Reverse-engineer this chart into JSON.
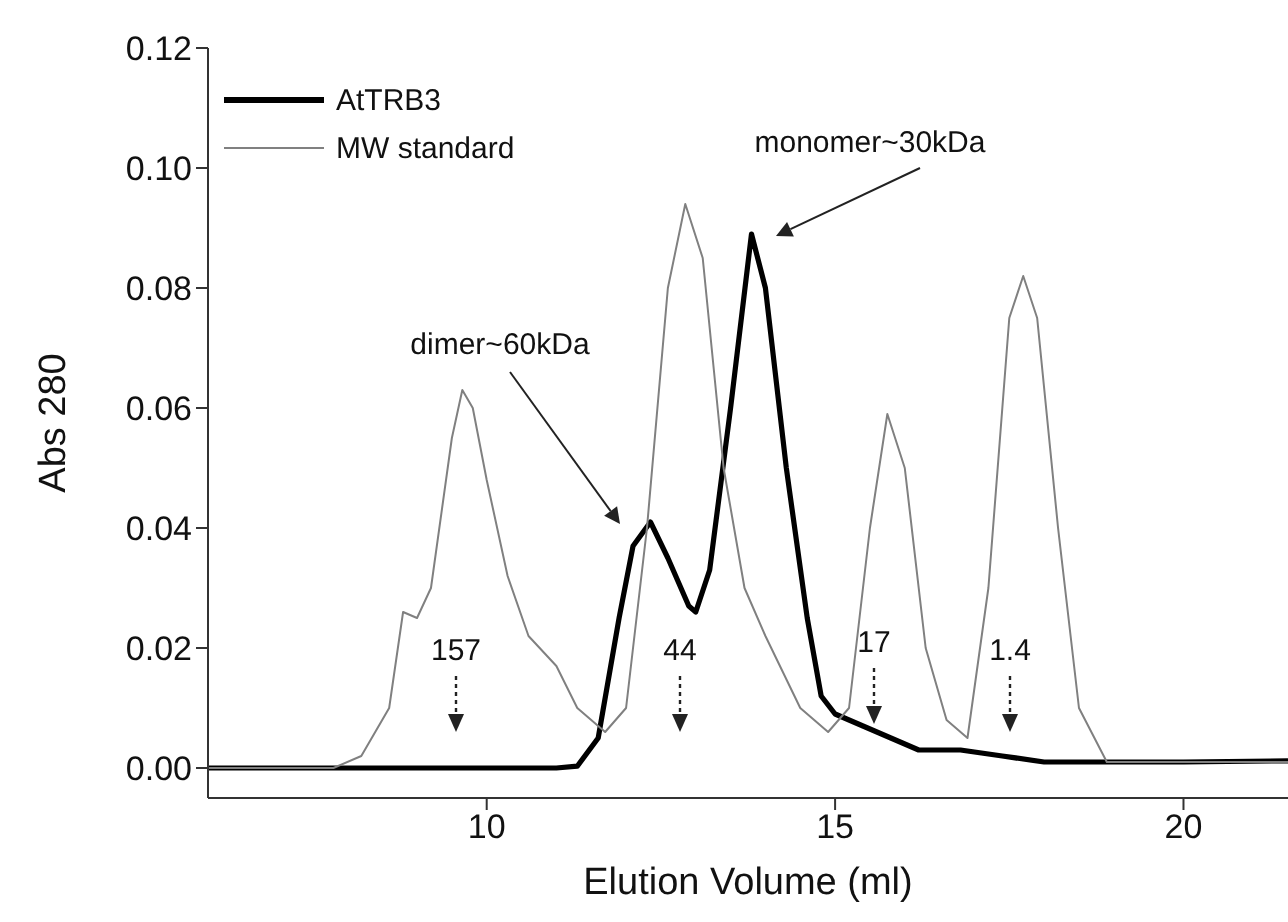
{
  "chart_data": {
    "type": "line",
    "xlabel": "Elution Volume (ml)",
    "ylabel": "Abs 280",
    "xlim": [
      6,
      21.5
    ],
    "xticks": [
      10,
      15,
      20
    ],
    "ylim": [
      -0.005,
      0.12
    ],
    "yticks": [
      {
        "value": 0,
        "label": "0.00"
      },
      0.02,
      0.04,
      0.06,
      0.08,
      {
        "value": 0.1,
        "label": "0.10"
      },
      0.12
    ],
    "legend": "top left",
    "grid": false,
    "marker": "none",
    "line_style": "solid",
    "series": [
      {
        "name": "AtTRB3",
        "color": "#000000",
        "x": [
          6,
          8,
          10,
          11,
          11.3,
          11.6,
          11.9,
          12.1,
          12.35,
          12.6,
          12.9,
          13.0,
          13.2,
          13.5,
          13.8,
          14.0,
          14.3,
          14.6,
          14.8,
          15.0,
          15.4,
          15.8,
          16.2,
          16.8,
          17.4,
          18,
          20,
          21.5
        ],
        "values": [
          0,
          0,
          0,
          0,
          0.0003,
          0.005,
          0.025,
          0.037,
          0.041,
          0.035,
          0.027,
          0.026,
          0.033,
          0.06,
          0.089,
          0.08,
          0.05,
          0.025,
          0.012,
          0.009,
          0.007,
          0.005,
          0.003,
          0.003,
          0.002,
          0.001,
          0.001,
          0.0012
        ]
      },
      {
        "name": "MW standard",
        "color": "#808080",
        "x": [
          6,
          7.8,
          8.2,
          8.6,
          8.8,
          9.0,
          9.2,
          9.5,
          9.65,
          9.8,
          10.0,
          10.3,
          10.6,
          11.0,
          11.3,
          11.7,
          12.0,
          12.3,
          12.6,
          12.85,
          13.1,
          13.4,
          13.7,
          14.0,
          14.5,
          14.9,
          15.2,
          15.5,
          15.75,
          16.0,
          16.3,
          16.6,
          16.9,
          17.2,
          17.5,
          17.7,
          17.9,
          18.2,
          18.5,
          18.9,
          19.5,
          21.5
        ],
        "values": [
          0,
          0,
          0.002,
          0.01,
          0.026,
          0.025,
          0.03,
          0.055,
          0.063,
          0.06,
          0.048,
          0.032,
          0.022,
          0.017,
          0.01,
          0.006,
          0.01,
          0.04,
          0.08,
          0.094,
          0.085,
          0.05,
          0.03,
          0.022,
          0.01,
          0.006,
          0.01,
          0.04,
          0.059,
          0.05,
          0.02,
          0.008,
          0.005,
          0.03,
          0.075,
          0.082,
          0.075,
          0.04,
          0.01,
          0.001,
          0.001,
          0.001
        ]
      }
    ],
    "annotations": [
      "dimer~60kDa",
      "monomer~30kDa",
      "157",
      "44",
      "17",
      "1.4"
    ]
  }
}
